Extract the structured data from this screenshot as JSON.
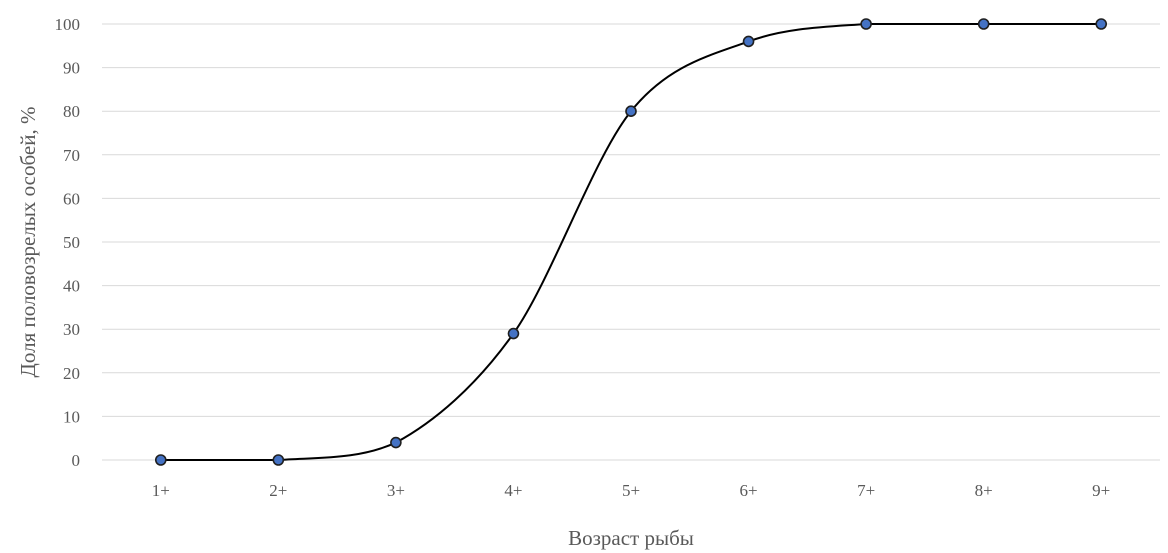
{
  "chart_data": {
    "type": "line",
    "title": "",
    "xlabel": "Возраст рыбы",
    "ylabel": "Доля половозрелых особей, %",
    "categories": [
      "1+",
      "2+",
      "3+",
      "4+",
      "5+",
      "6+",
      "7+",
      "8+",
      "9+"
    ],
    "series": [
      {
        "values": [
          0,
          0,
          4,
          29,
          80,
          96,
          100,
          100,
          100
        ]
      }
    ],
    "ylim": [
      0,
      100
    ],
    "yticks": [
      0,
      10,
      20,
      30,
      40,
      50,
      60,
      70,
      80,
      90,
      100
    ],
    "smoothed": true,
    "grid": "horizontal",
    "legend": "none",
    "colors": {
      "line": "#000000",
      "marker": "#4472c4",
      "grid": "#d9d9d9",
      "text": "#595959"
    }
  }
}
